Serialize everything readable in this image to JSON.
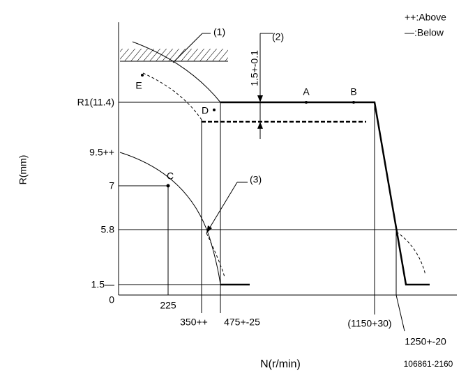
{
  "legend": {
    "above": "++:Above",
    "below": "—:Below"
  },
  "callouts": {
    "one": "(1)",
    "two": "(2)",
    "three": "(3)",
    "tolerance": "1.5+-0.1"
  },
  "points": {
    "a": "A",
    "b": "B",
    "c": "C",
    "d": "D",
    "e": "E"
  },
  "y_labels": {
    "r1": "R1(11.4)",
    "r95": "9.5++",
    "r7": "7",
    "r58": "5.8",
    "r15": "1.5—",
    "zero": "0"
  },
  "x_labels": {
    "n225": "225",
    "n350": "350++",
    "n475": "475+-25",
    "n1150": "(1150+30)",
    "n1250": "1250+-20"
  },
  "axis_titles": {
    "y": "R(mm)",
    "x": "N(r/min)"
  },
  "code": "106861-2160"
}
